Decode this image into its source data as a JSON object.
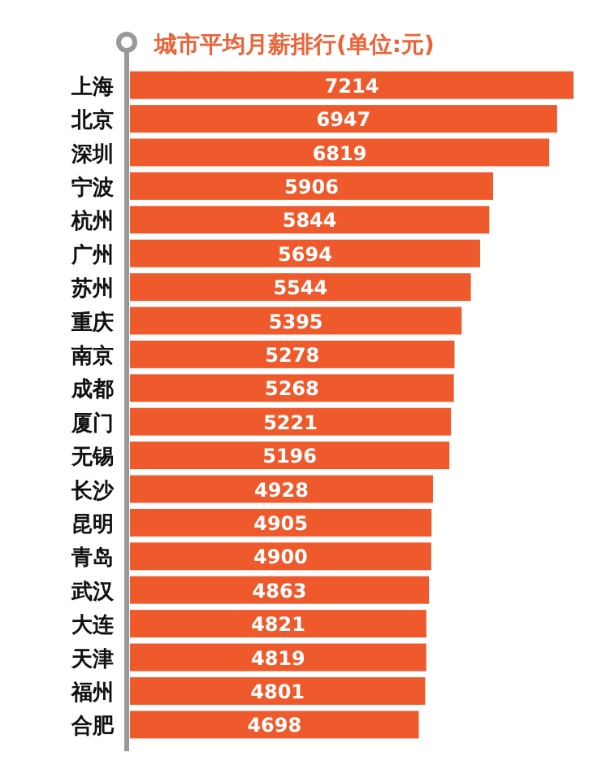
{
  "chart_data": {
    "type": "bar",
    "orientation": "horizontal",
    "title": "城市平均月薪排行(单位:元)",
    "categories": [
      "上海",
      "北京",
      "深圳",
      "宁波",
      "杭州",
      "广州",
      "苏州",
      "重庆",
      "南京",
      "成都",
      "厦门",
      "无锡",
      "长沙",
      "昆明",
      "青岛",
      "武汉",
      "大连",
      "天津",
      "福州",
      "合肥"
    ],
    "values": [
      7214,
      6947,
      6819,
      5906,
      5844,
      5694,
      5544,
      5395,
      5278,
      5268,
      5221,
      5196,
      4928,
      4905,
      4900,
      4863,
      4821,
      4819,
      4801,
      4698
    ],
    "color": "#ee5a2c",
    "data_labels": true
  }
}
